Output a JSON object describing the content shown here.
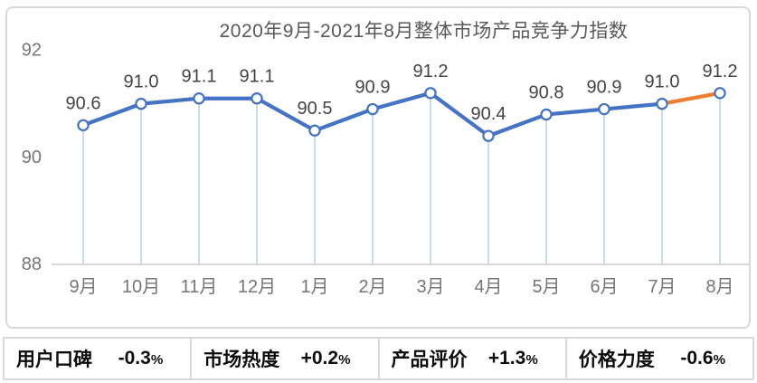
{
  "title": "2020年9月-2021年8月整体市场产品竞争力指数",
  "chart_data": {
    "type": "line",
    "title": "2020年9月-2021年8月整体市场产品竞争力指数",
    "categories": [
      "9月",
      "10月",
      "11月",
      "12月",
      "1月",
      "2月",
      "3月",
      "4月",
      "5月",
      "6月",
      "7月",
      "8月"
    ],
    "values": [
      90.6,
      91.0,
      91.1,
      91.1,
      90.5,
      90.9,
      91.2,
      90.4,
      90.8,
      90.9,
      91.0,
      91.2
    ],
    "value_labels": [
      "90.6",
      "91.0",
      "91.1",
      "91.1",
      "90.5",
      "90.9",
      "91.2",
      "90.4",
      "90.8",
      "90.9",
      "91.0",
      "91.2"
    ],
    "yticks": [
      88,
      90,
      92
    ],
    "ylim": [
      88,
      92.8
    ],
    "grid": false,
    "legend": false,
    "marker": "open-circle",
    "droplines": true,
    "highlight_segment_index": 10,
    "colors": {
      "line": "#4472C4",
      "highlight": "#ED7D31",
      "dropline": "#BDD2EE",
      "axis": "#D9D9D9",
      "value_label": "#444444",
      "tick_label": "#767676"
    }
  },
  "stats": {
    "items": [
      {
        "label": "用户口碑",
        "value": "-0.3%"
      },
      {
        "label": "市场热度",
        "value": "+0.2%"
      },
      {
        "label": "产品评价",
        "value": "+1.3%"
      },
      {
        "label": "价格力度",
        "value": "-0.6%"
      }
    ]
  }
}
